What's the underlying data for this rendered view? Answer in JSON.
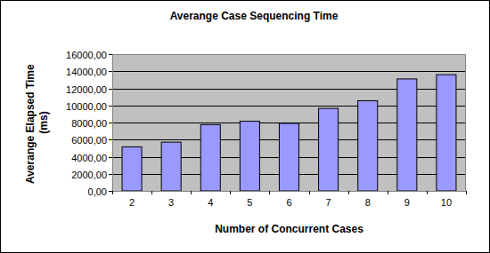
{
  "chart_data": {
    "type": "bar",
    "title": "Averange Case Sequencing Time",
    "x_label": "Number of Concurrent Cases",
    "y_label": "Averange Elapsed Time (ms)",
    "categories": [
      "2",
      "3",
      "4",
      "5",
      "6",
      "7",
      "8",
      "9",
      "10"
    ],
    "values": [
      5150,
      5700,
      7750,
      8150,
      7900,
      9650,
      10550,
      13100,
      13600
    ],
    "color": "#9999ff",
    "ylim": [
      0,
      16000
    ],
    "yticks": [
      {
        "value": 0,
        "label": "0,00"
      },
      {
        "value": 2000,
        "label": "2000,00"
      },
      {
        "value": 4000,
        "label": "4000,00"
      },
      {
        "value": 6000,
        "label": "6000,00"
      },
      {
        "value": 8000,
        "label": "8000,00"
      },
      {
        "value": 10000,
        "label": "10000,00"
      },
      {
        "value": 12000,
        "label": "12000,00"
      },
      {
        "value": 14000,
        "label": "14000,00"
      },
      {
        "value": 16000,
        "label": "16000,00"
      }
    ],
    "grid": true
  }
}
